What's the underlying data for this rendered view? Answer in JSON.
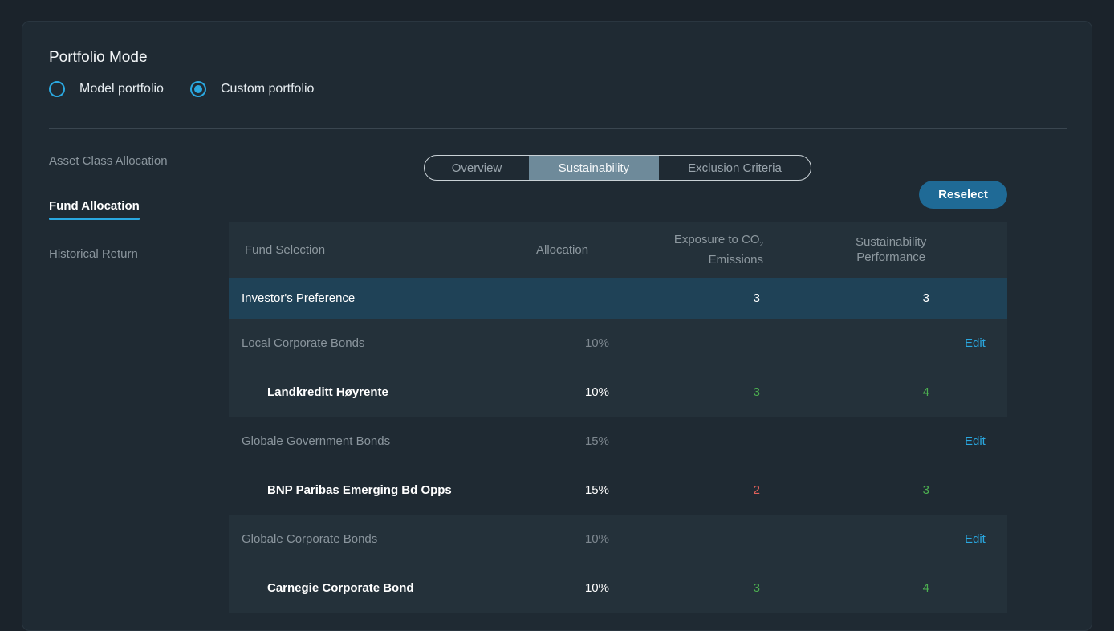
{
  "portfolio_mode": {
    "title": "Portfolio Mode",
    "options": [
      {
        "label": "Model portfolio",
        "selected": false
      },
      {
        "label": "Custom portfolio",
        "selected": true
      }
    ]
  },
  "side_nav": {
    "items": [
      {
        "label": "Asset Class Allocation",
        "active": false
      },
      {
        "label": "Fund Allocation",
        "active": true
      },
      {
        "label": "Historical Return",
        "active": false
      }
    ]
  },
  "tabs": [
    {
      "label": "Overview",
      "active": false
    },
    {
      "label": "Sustainability",
      "active": true
    },
    {
      "label": "Exclusion Criteria",
      "active": false
    }
  ],
  "reselect_label": "Reselect",
  "table": {
    "headers": {
      "fund_selection": "Fund Selection",
      "allocation": "Allocation",
      "co2_line1": "Exposure to CO",
      "co2_sub": "2",
      "co2_line2": "Emissions",
      "sust_line1": "Sustainability",
      "sust_line2": "Performance"
    },
    "preference": {
      "label": "Investor's Preference",
      "co2": "3",
      "sustainability": "3"
    },
    "edit_label": "Edit",
    "groups": [
      {
        "name": "Local Corporate Bonds",
        "allocation": "10%",
        "fund": {
          "name": "Landkreditt Høyrente",
          "allocation": "10%",
          "co2": "3",
          "sustainability": "4"
        }
      },
      {
        "name": "Globale Government Bonds",
        "allocation": "15%",
        "fund": {
          "name": "BNP Paribas Emerging Bd Opps",
          "allocation": "15%",
          "co2": "2",
          "sustainability": "3"
        }
      },
      {
        "name": "Globale Corporate Bonds",
        "allocation": "10%",
        "fund": {
          "name": "Carnegie Corporate Bond",
          "allocation": "10%",
          "co2": "3",
          "sustainability": "4"
        }
      }
    ]
  },
  "colors": {
    "accent": "#2aa8e0",
    "good": "#4caf50",
    "bad": "#e0605a",
    "button": "#1f6a96"
  }
}
